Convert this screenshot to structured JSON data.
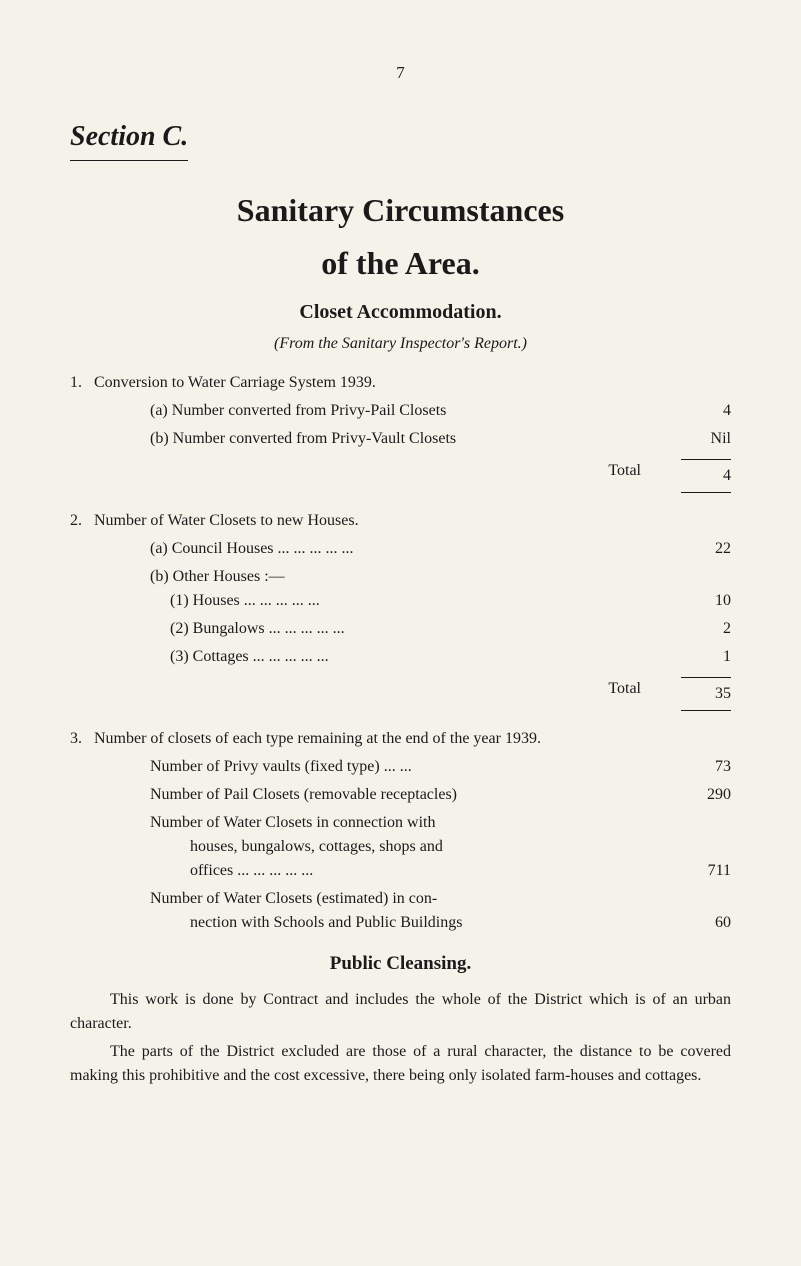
{
  "page_number": "7",
  "section_header": "Section C.",
  "title_line1": "Sanitary Circumstances",
  "title_line2": "of the Area.",
  "closet_heading": "Closet Accommodation.",
  "from_note": "(From the Sanitary Inspector's Report.)",
  "item1": {
    "num": "1.",
    "text": "Conversion to Water Carriage System 1939.",
    "a_label": "(a) Number converted from Privy-Pail Closets",
    "a_value": "4",
    "b_label": "(b) Number converted from Privy-Vault Closets",
    "b_value": "Nil",
    "total_label": "Total",
    "total_value": "4"
  },
  "item2": {
    "num": "2.",
    "text": "Number of Water Closets to new Houses.",
    "a_label": "(a) Council Houses   ...   ...   ...   ...   ...",
    "a_value": "22",
    "b_label": "(b) Other Houses :—",
    "sub1_label": "(1) Houses        ...   ...   ...   ...   ...",
    "sub1_value": "10",
    "sub2_label": "(2) Bungalows    ...   ...   ...   ...   ...",
    "sub2_value": "2",
    "sub3_label": "(3) Cottages      ...   ...   ...   ...   ...",
    "sub3_value": "1",
    "total_label": "Total",
    "total_value": "35"
  },
  "item3": {
    "num": "3.",
    "text": "Number of closets of each type remaining at the end of the year 1939.",
    "row1_label": "Number of Privy vaults (fixed type) ...   ...",
    "row1_value": "73",
    "row2_label": "Number of Pail Closets (removable receptacles)",
    "row2_value": "290",
    "row3_label1": "Number of Water Closets in connection with",
    "row3_label2": "houses, bungalows, cottages, shops and",
    "row3_label3": "offices          ...   ...   ...   ...   ...",
    "row3_value": "711",
    "row4_label1": "Number of Water Closets (estimated) in con-",
    "row4_label2": "nection with Schools and Public Buildings",
    "row4_value": "60"
  },
  "public_cleansing": {
    "heading": "Public Cleansing.",
    "para1": "This work is done by Contract and includes the whole of the District which is of an urban character.",
    "para2": "The parts of the District excluded are those of a rural character, the distance to be covered making this prohibitive and the cost excessive, there being only isolated farm-houses and cottages."
  }
}
